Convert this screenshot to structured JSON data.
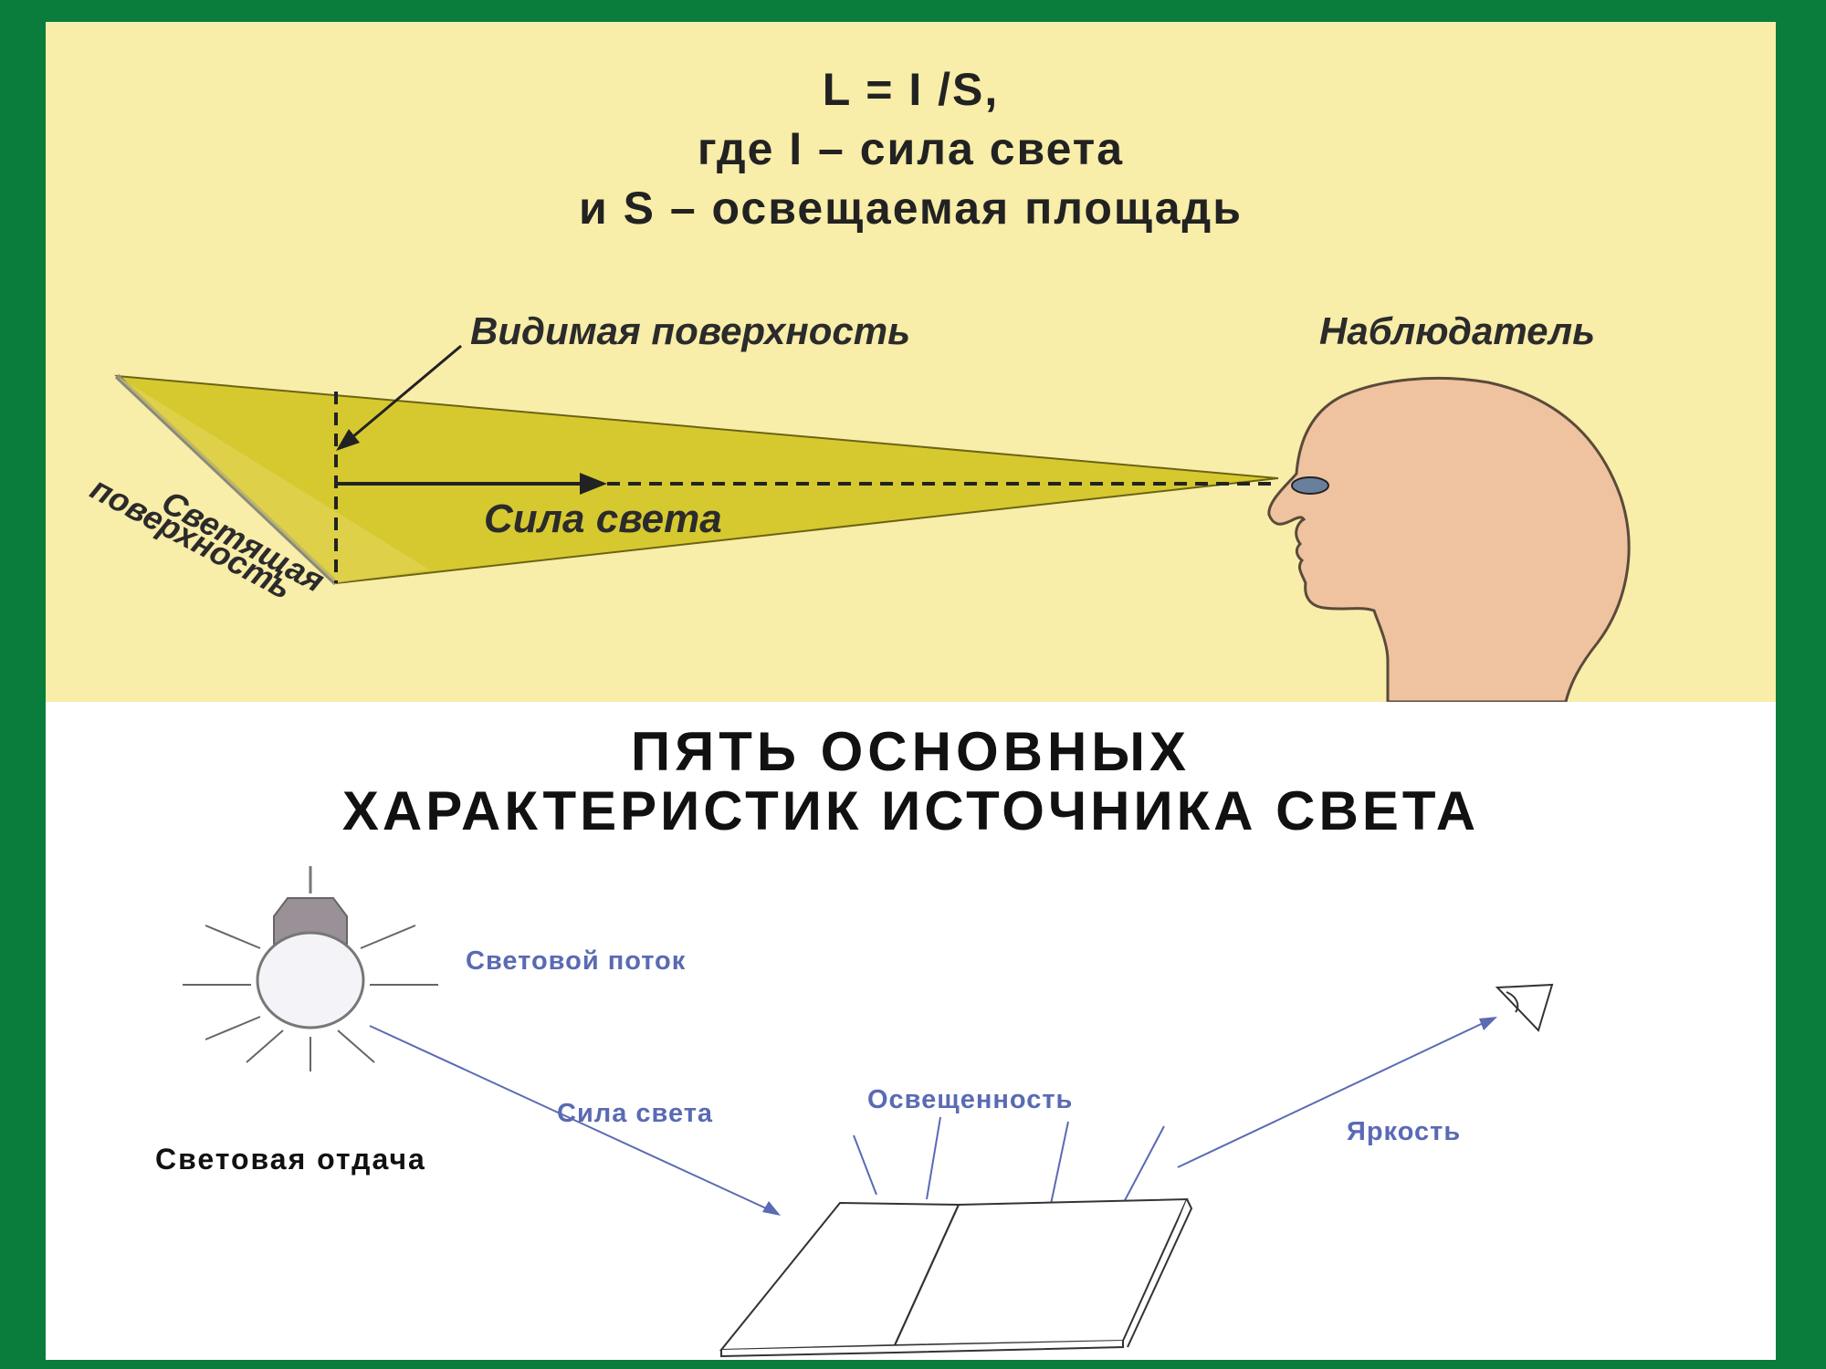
{
  "formula": {
    "line1": "L = I /S,",
    "line2": "где I – сила света",
    "line3": "и S – освещаемая площадь"
  },
  "top_diagram": {
    "visible_surface_label": "Видимая поверхность",
    "observer_label": "Наблюдатель",
    "luminous_surface_line1": "Светящая",
    "luminous_surface_line2": "поверхность",
    "intensity_label": "Сила света"
  },
  "heading": {
    "line1": "ПЯТЬ ОСНОВНЫХ",
    "line2": "ХАРАКТЕРИСТИК ИСТОЧНИКА СВЕТА"
  },
  "bottom_diagram": {
    "flux_label": "Световой поток",
    "intensity_label": "Сила света",
    "illuminance_label": "Освещенность",
    "brightness_label": "Яркость",
    "efficacy_label": "Световая отдача"
  },
  "colors": {
    "frame": "#0a7d3c",
    "top_panel": "#f8eda9",
    "light_cone": "#d6c930",
    "head": "#efc3a0",
    "blue_text": "#5a6ab3"
  }
}
